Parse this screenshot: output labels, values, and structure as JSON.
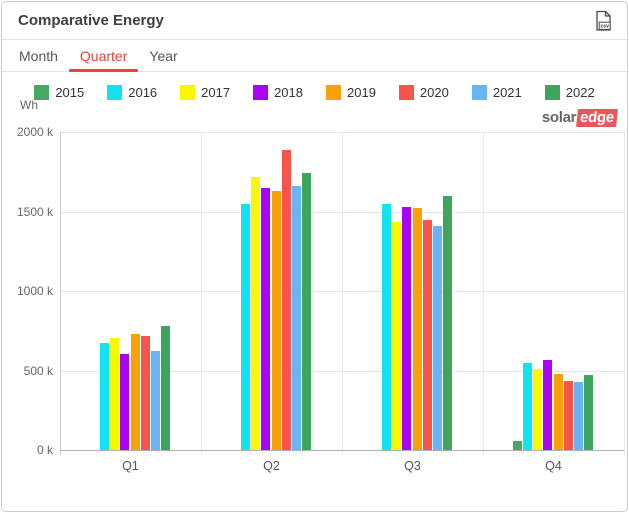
{
  "header": {
    "title": "Comparative Energy",
    "csv_label": "csv"
  },
  "tabs": [
    {
      "label": "Month",
      "active": false
    },
    {
      "label": "Quarter",
      "active": true
    },
    {
      "label": "Year",
      "active": false
    }
  ],
  "unit_label": "Wh",
  "logo": {
    "part1": "solar",
    "part2": "edge"
  },
  "colors": {
    "accent_red": "#e8453c",
    "grid": "#dfe8ee",
    "axis": "#b0b0b0"
  },
  "chart_data": {
    "type": "bar",
    "title": "Comparative Energy",
    "unit": "Wh",
    "grid": true,
    "legend_position": "top",
    "categories": [
      "Q1",
      "Q2",
      "Q3",
      "Q4"
    ],
    "ylim_k": [
      0,
      2000
    ],
    "y_ticks": [
      {
        "label": "0 k",
        "value_k": 0
      },
      {
        "label": "500 k",
        "value_k": 500
      },
      {
        "label": "1000 k",
        "value_k": 1000
      },
      {
        "label": "1500 k",
        "value_k": 1500
      },
      {
        "label": "2000 k",
        "value_k": 2000
      }
    ],
    "series": [
      {
        "name": "2015",
        "color": "#43A963",
        "values_k": [
          0,
          0,
          0,
          55
        ]
      },
      {
        "name": "2016",
        "color": "#12E3F0",
        "values_k": [
          675,
          1550,
          1550,
          545
        ]
      },
      {
        "name": "2017",
        "color": "#F8F800",
        "values_k": [
          705,
          1715,
          1435,
          510
        ]
      },
      {
        "name": "2018",
        "color": "#A806F2",
        "values_k": [
          605,
          1645,
          1530,
          565
        ]
      },
      {
        "name": "2019",
        "color": "#F9A109",
        "values_k": [
          730,
          1630,
          1520,
          475
        ]
      },
      {
        "name": "2020",
        "color": "#F8534D",
        "values_k": [
          720,
          1885,
          1445,
          435
        ]
      },
      {
        "name": "2021",
        "color": "#69B4F3",
        "values_k": [
          620,
          1660,
          1410,
          425
        ]
      },
      {
        "name": "2022",
        "color": "#3CA65E",
        "values_k": [
          780,
          1745,
          1600,
          470
        ]
      }
    ]
  }
}
